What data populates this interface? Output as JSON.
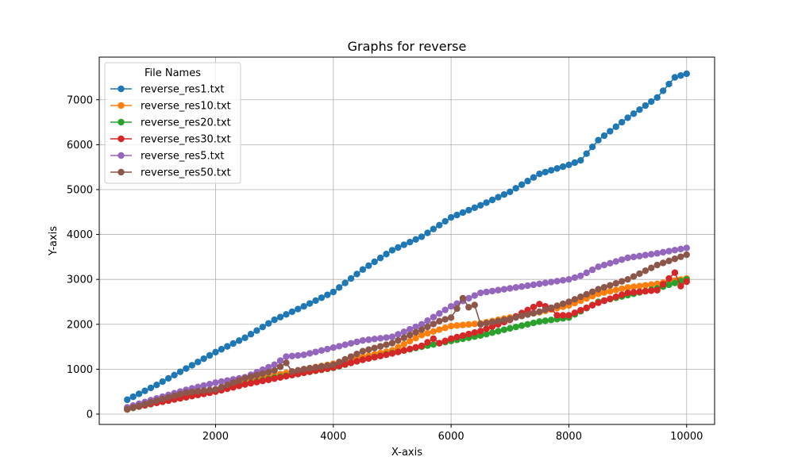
{
  "chart_data": {
    "type": "line",
    "title": "Graphs for reverse",
    "xlabel": "X-axis",
    "ylabel": "Y-axis",
    "xlim": [
      25,
      10475
    ],
    "ylim": [
      -230,
      7950
    ],
    "xticks": [
      2000,
      4000,
      6000,
      8000,
      10000
    ],
    "yticks": [
      0,
      1000,
      2000,
      3000,
      4000,
      5000,
      6000,
      7000
    ],
    "grid": true,
    "legend": {
      "title": "File Names",
      "placement": "upper-left"
    },
    "x_start": 500,
    "x_step": 100,
    "x_end": 10000,
    "series": [
      {
        "name": "reverse_res1.txt",
        "color": "#1f77b4",
        "anchors": [
          [
            500,
            320
          ],
          [
            1000,
            650
          ],
          [
            2000,
            1380
          ],
          [
            2500,
            1700
          ],
          [
            3000,
            2100
          ],
          [
            3500,
            2400
          ],
          [
            4000,
            2720
          ],
          [
            4500,
            3220
          ],
          [
            5000,
            3650
          ],
          [
            5500,
            3950
          ],
          [
            6000,
            4380
          ],
          [
            6500,
            4650
          ],
          [
            7000,
            4950
          ],
          [
            7500,
            5350
          ],
          [
            8000,
            5550
          ],
          [
            8200,
            5650
          ],
          [
            8500,
            6100
          ],
          [
            9000,
            6600
          ],
          [
            9500,
            7050
          ],
          [
            9800,
            7500
          ],
          [
            10000,
            7580
          ]
        ]
      },
      {
        "name": "reverse_res10.txt",
        "color": "#ff7f0e",
        "anchors": [
          [
            500,
            100
          ],
          [
            1000,
            290
          ],
          [
            2000,
            540
          ],
          [
            2500,
            760
          ],
          [
            3000,
            860
          ],
          [
            3500,
            1000
          ],
          [
            4000,
            1120
          ],
          [
            4500,
            1270
          ],
          [
            5000,
            1420
          ],
          [
            5500,
            1760
          ],
          [
            6000,
            1960
          ],
          [
            6500,
            2020
          ],
          [
            7000,
            2150
          ],
          [
            7500,
            2270
          ],
          [
            8000,
            2420
          ],
          [
            8500,
            2680
          ],
          [
            9000,
            2820
          ],
          [
            9500,
            2900
          ],
          [
            10000,
            3020
          ]
        ]
      },
      {
        "name": "reverse_res20.txt",
        "color": "#2ca02c",
        "anchors": [
          [
            500,
            110
          ],
          [
            1000,
            250
          ],
          [
            2000,
            510
          ],
          [
            2500,
            670
          ],
          [
            3000,
            810
          ],
          [
            3500,
            920
          ],
          [
            4000,
            1030
          ],
          [
            4500,
            1210
          ],
          [
            5000,
            1360
          ],
          [
            5500,
            1500
          ],
          [
            6000,
            1630
          ],
          [
            6500,
            1750
          ],
          [
            7000,
            1910
          ],
          [
            7500,
            2060
          ],
          [
            8000,
            2150
          ],
          [
            8500,
            2500
          ],
          [
            9000,
            2650
          ],
          [
            9500,
            2800
          ],
          [
            10000,
            3000
          ]
        ]
      },
      {
        "name": "reverse_res30.txt",
        "color": "#d62728",
        "anchors": [
          [
            500,
            120
          ],
          [
            1000,
            250
          ],
          [
            2000,
            500
          ],
          [
            2500,
            660
          ],
          [
            3000,
            790
          ],
          [
            3500,
            920
          ],
          [
            4000,
            1040
          ],
          [
            4500,
            1210
          ],
          [
            5000,
            1350
          ],
          [
            5500,
            1520
          ],
          [
            5700,
            1680
          ],
          [
            5800,
            1580
          ],
          [
            6000,
            1680
          ],
          [
            6500,
            1850
          ],
          [
            7000,
            2100
          ],
          [
            7200,
            2250
          ],
          [
            7500,
            2450
          ],
          [
            7700,
            2350
          ],
          [
            7800,
            2200
          ],
          [
            8000,
            2200
          ],
          [
            8500,
            2480
          ],
          [
            9000,
            2700
          ],
          [
            9500,
            2760
          ],
          [
            9800,
            3150
          ],
          [
            9900,
            2850
          ],
          [
            10000,
            2950
          ]
        ]
      },
      {
        "name": "reverse_res5.txt",
        "color": "#9467bd",
        "anchors": [
          [
            500,
            150
          ],
          [
            1000,
            350
          ],
          [
            1500,
            540
          ],
          [
            2000,
            700
          ],
          [
            2500,
            820
          ],
          [
            3000,
            1100
          ],
          [
            3200,
            1280
          ],
          [
            3500,
            1320
          ],
          [
            4000,
            1480
          ],
          [
            4500,
            1640
          ],
          [
            5000,
            1720
          ],
          [
            5500,
            2000
          ],
          [
            6000,
            2400
          ],
          [
            6500,
            2700
          ],
          [
            7000,
            2800
          ],
          [
            7500,
            2900
          ],
          [
            8000,
            3000
          ],
          [
            8200,
            3080
          ],
          [
            8500,
            3280
          ],
          [
            9000,
            3480
          ],
          [
            9500,
            3580
          ],
          [
            10000,
            3700
          ]
        ]
      },
      {
        "name": "reverse_res50.txt",
        "color": "#8c564b",
        "anchors": [
          [
            500,
            110
          ],
          [
            1000,
            300
          ],
          [
            1500,
            480
          ],
          [
            2000,
            550
          ],
          [
            2500,
            800
          ],
          [
            3000,
            970
          ],
          [
            3200,
            1140
          ],
          [
            3300,
            950
          ],
          [
            3500,
            1000
          ],
          [
            4000,
            1100
          ],
          [
            4500,
            1400
          ],
          [
            5000,
            1580
          ],
          [
            5500,
            1880
          ],
          [
            5800,
            2070
          ],
          [
            6000,
            2150
          ],
          [
            6100,
            2350
          ],
          [
            6200,
            2580
          ],
          [
            6300,
            2380
          ],
          [
            6400,
            2430
          ],
          [
            6500,
            2000
          ],
          [
            7000,
            2120
          ],
          [
            7500,
            2280
          ],
          [
            8000,
            2500
          ],
          [
            8500,
            2780
          ],
          [
            9000,
            3000
          ],
          [
            9500,
            3320
          ],
          [
            10000,
            3550
          ]
        ]
      }
    ]
  }
}
